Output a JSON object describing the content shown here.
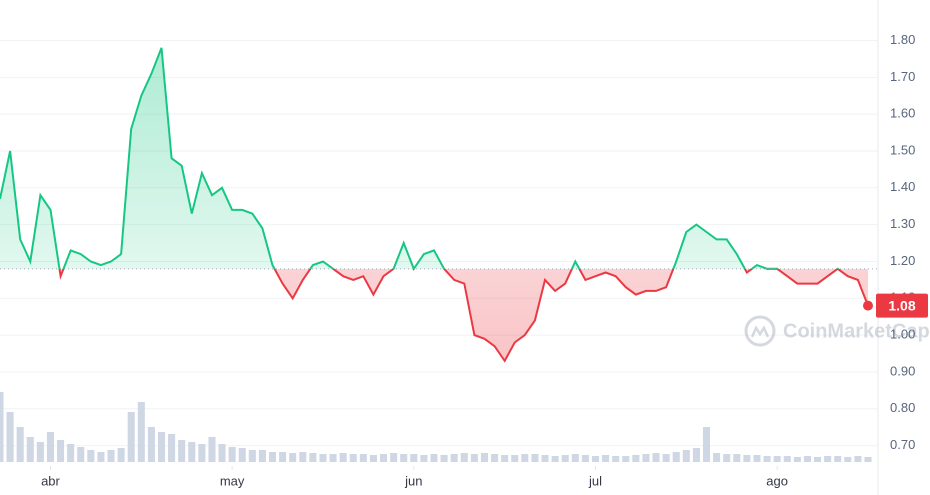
{
  "chart_data": {
    "type": "line",
    "series": [
      {
        "name": "Price",
        "color": "#16c784",
        "values": [
          1.37,
          1.5,
          1.26,
          1.2,
          1.38,
          1.34,
          1.16,
          1.23,
          1.22,
          1.2,
          1.19,
          1.2,
          1.22,
          1.56,
          1.65,
          1.71,
          1.78,
          1.48,
          1.46,
          1.33,
          1.44,
          1.38,
          1.4,
          1.34,
          1.34,
          1.33,
          1.29,
          1.19,
          1.14,
          1.1,
          1.15,
          1.19,
          1.2,
          1.18,
          1.16,
          1.15,
          1.16,
          1.11,
          1.16,
          1.18,
          1.25,
          1.18,
          1.22,
          1.23,
          1.18,
          1.15,
          1.14,
          1.0,
          0.99,
          0.97,
          0.93,
          0.98,
          1.0,
          1.04,
          1.15,
          1.12,
          1.14,
          1.2,
          1.15,
          1.16,
          1.17,
          1.16,
          1.13,
          1.11,
          1.12,
          1.12,
          1.13,
          1.2,
          1.28,
          1.3,
          1.28,
          1.26,
          1.26,
          1.22,
          1.17,
          1.19,
          1.18,
          1.18,
          1.16,
          1.14,
          1.14,
          1.14,
          1.16,
          1.18,
          1.16,
          1.15,
          1.08
        ]
      }
    ],
    "below_color": "#ea3943",
    "baseline": 1.18,
    "volume": {
      "color": "#cfd6e4",
      "values": [
        70,
        50,
        35,
        25,
        20,
        30,
        22,
        18,
        15,
        12,
        10,
        12,
        14,
        50,
        60,
        35,
        30,
        28,
        22,
        20,
        18,
        25,
        18,
        15,
        14,
        12,
        12,
        10,
        10,
        9,
        10,
        9,
        8,
        8,
        9,
        8,
        8,
        7,
        8,
        9,
        8,
        8,
        7,
        8,
        7,
        8,
        9,
        8,
        9,
        8,
        7,
        7,
        8,
        8,
        7,
        6,
        7,
        8,
        7,
        6,
        7,
        6,
        6,
        7,
        8,
        9,
        8,
        10,
        12,
        14,
        35,
        9,
        8,
        8,
        7,
        7,
        6,
        6,
        6,
        5,
        6,
        5,
        6,
        6,
        5,
        6,
        5
      ]
    },
    "xlim": [
      0,
      86
    ],
    "xticks": [
      {
        "value": 5,
        "label": "abr"
      },
      {
        "value": 23,
        "label": "may"
      },
      {
        "value": 41,
        "label": "jun"
      },
      {
        "value": 59,
        "label": "jul"
      },
      {
        "value": 77,
        "label": "ago"
      }
    ],
    "ylim": [
      0.65,
      1.91
    ],
    "yticks": [
      {
        "value": 0.7,
        "label": "0.70"
      },
      {
        "value": 0.8,
        "label": "0.80"
      },
      {
        "value": 0.9,
        "label": "0.90"
      },
      {
        "value": 1.0,
        "label": "1.00"
      },
      {
        "value": 1.1,
        "label": "1.10"
      },
      {
        "value": 1.2,
        "label": "1.20"
      },
      {
        "value": 1.3,
        "label": "1.30"
      },
      {
        "value": 1.4,
        "label": "1.40"
      },
      {
        "value": 1.5,
        "label": "1.50"
      },
      {
        "value": 1.6,
        "label": "1.60"
      },
      {
        "value": 1.7,
        "label": "1.70"
      },
      {
        "value": 1.8,
        "label": "1.80"
      }
    ],
    "grid": true,
    "watermark": "CoinMarketCap"
  }
}
